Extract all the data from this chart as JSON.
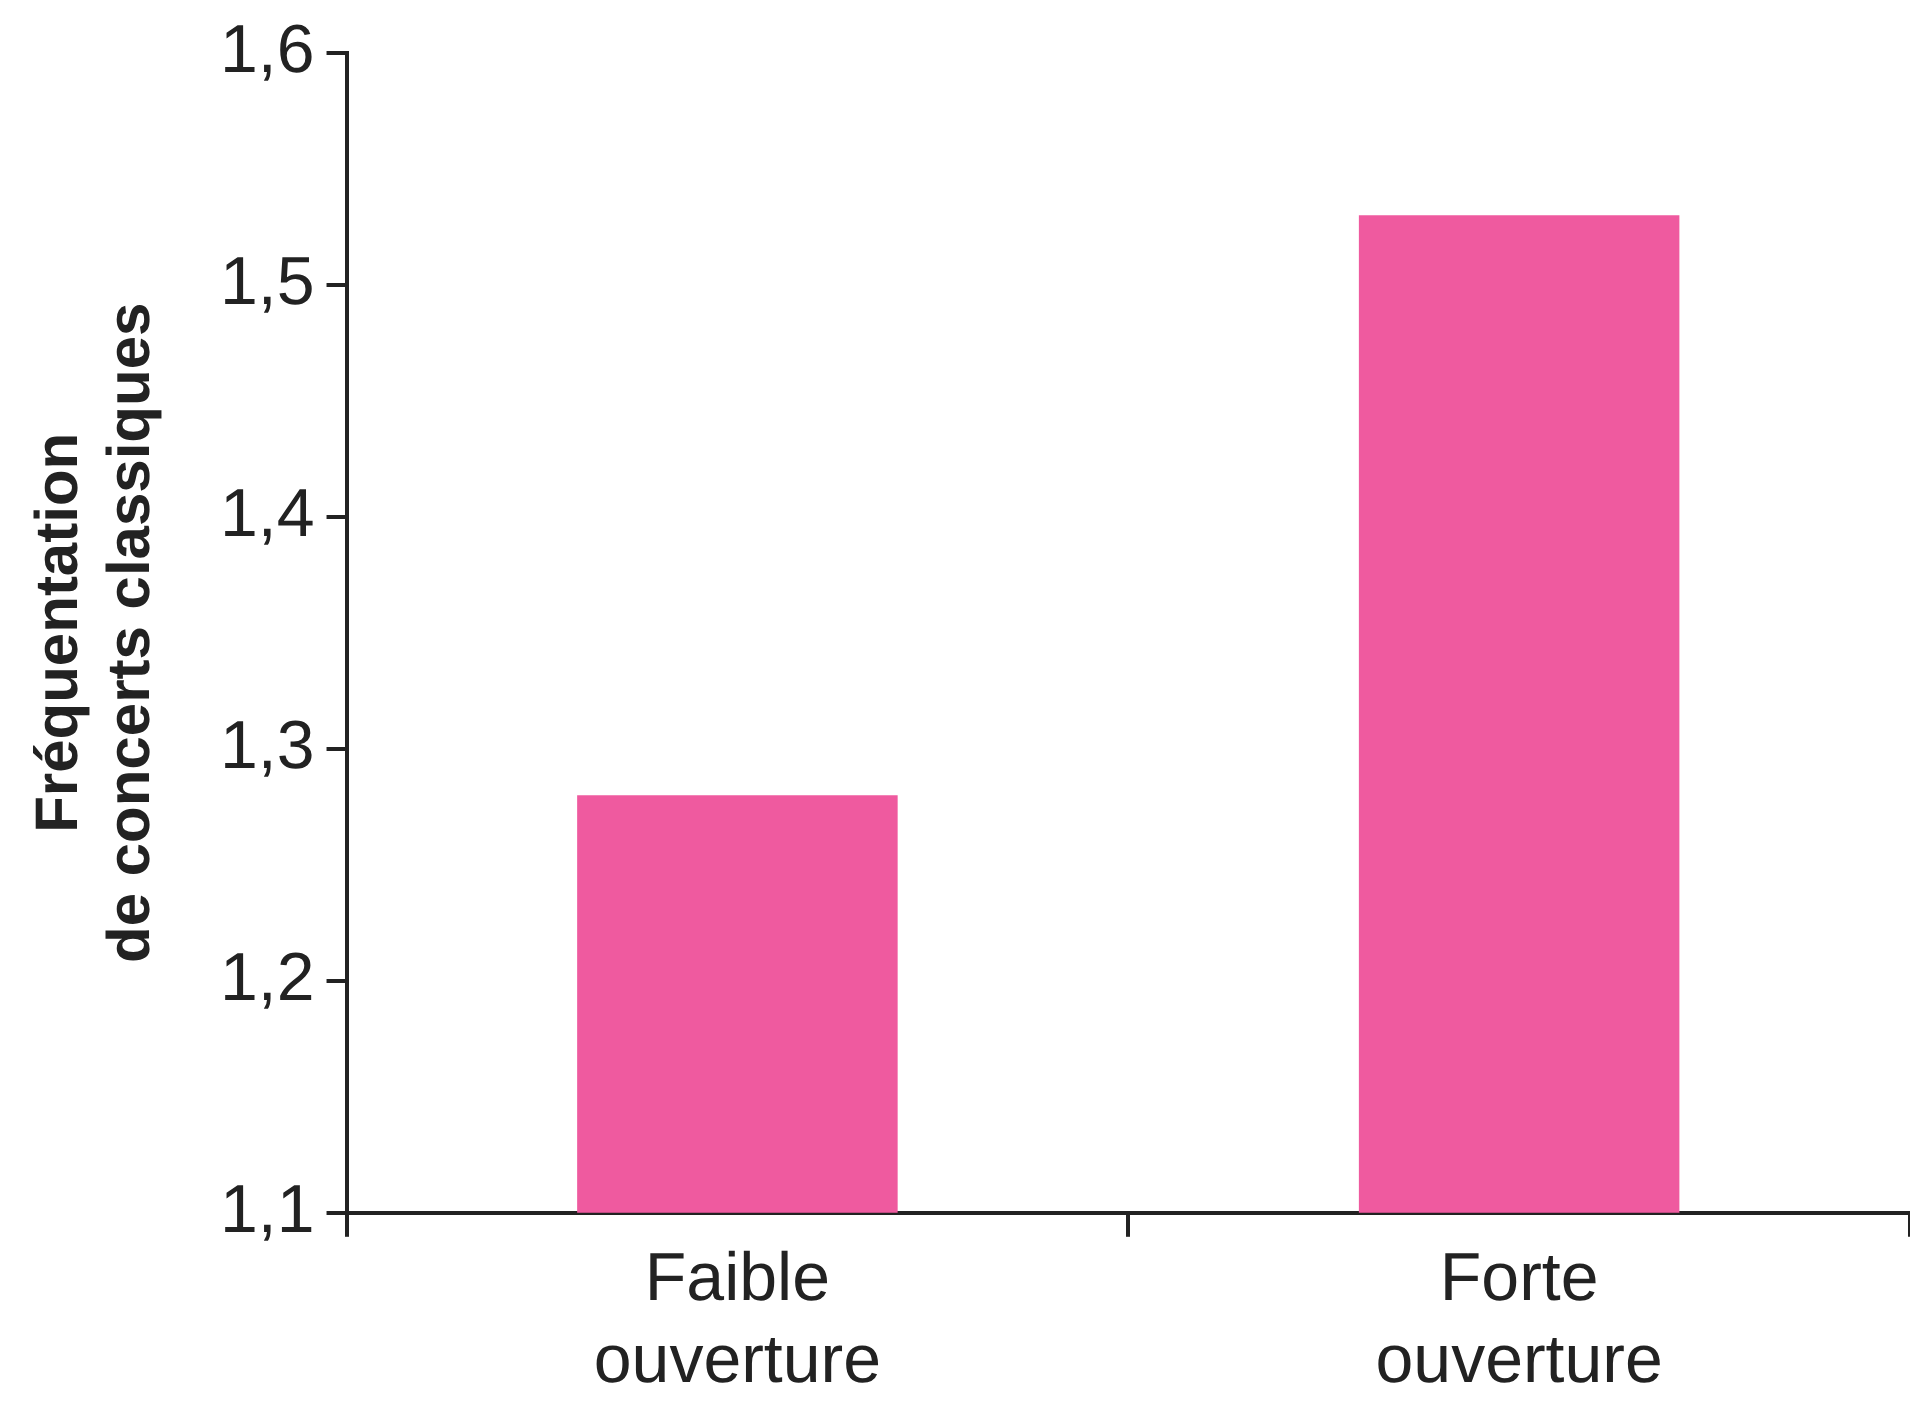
{
  "chart_data": {
    "type": "bar",
    "ylabel": "Fréquentation de concerts classiques",
    "categories": [
      "Faible ouverture",
      "Forte ouverture"
    ],
    "values": [
      1.28,
      1.53
    ],
    "color": "#ef5a9f",
    "ylim": [
      1.1,
      1.6
    ],
    "yticks": [
      {
        "value": 1.1,
        "label": "1,1"
      },
      {
        "value": 1.2,
        "label": "1,2"
      },
      {
        "value": 1.3,
        "label": "1,3"
      },
      {
        "value": 1.4,
        "label": "1,4"
      },
      {
        "value": 1.5,
        "label": "1,5"
      },
      {
        "value": 1.6,
        "label": "1,6"
      }
    ],
    "grid": false,
    "legend": false
  }
}
